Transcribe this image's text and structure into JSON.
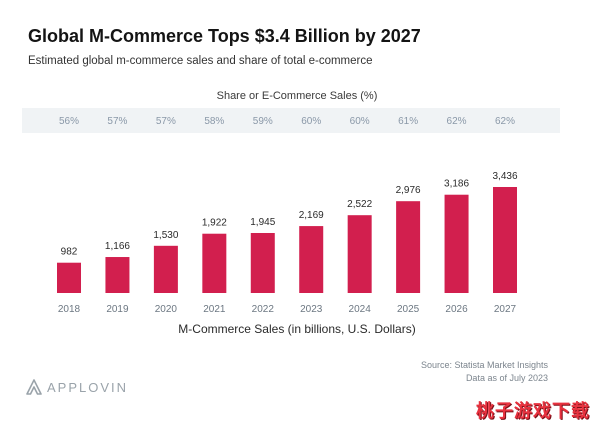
{
  "title": "Global M-Commerce Tops $3.4 Billion by 2027",
  "subtitle": "Estimated global m-commerce sales and share of total e-commerce",
  "source": {
    "line1": "Source: Statista Market Insights",
    "line2": "Data as of July 2023"
  },
  "logo": {
    "text": "APPLOVIN",
    "icon": "applovin-logo-icon"
  },
  "watermark": "桃子游戏下载",
  "colors": {
    "bar": "#d21f4e",
    "share_text": "#8a98a8",
    "axis_text": "#6c7782",
    "band": "#f0f3f5"
  },
  "chart_data": {
    "type": "bar",
    "title": "Global M-Commerce Tops $3.4 Billion by 2027",
    "xlabel": "M-Commerce Sales (in billions, U.S. Dollars)",
    "ylabel": "",
    "categories": [
      "2018",
      "2019",
      "2020",
      "2021",
      "2022",
      "2023",
      "2024",
      "2025",
      "2026",
      "2027"
    ],
    "values": [
      982,
      1166,
      1530,
      1922,
      1945,
      2169,
      2522,
      2976,
      3186,
      3436
    ],
    "value_labels": [
      "982",
      "1,166",
      "1,530",
      "1,922",
      "1,945",
      "2,169",
      "2,522",
      "2,976",
      "3,186",
      "3,436"
    ],
    "share_title": "Share or E-Commerce Sales (%)",
    "share_values": [
      56,
      57,
      57,
      58,
      59,
      60,
      60,
      61,
      62,
      62
    ],
    "share_labels": [
      "56%",
      "57%",
      "57%",
      "58%",
      "59%",
      "60%",
      "60%",
      "61%",
      "62%",
      "62%"
    ],
    "ylim": [
      0,
      3436
    ],
    "grid": false,
    "legend": "none"
  }
}
